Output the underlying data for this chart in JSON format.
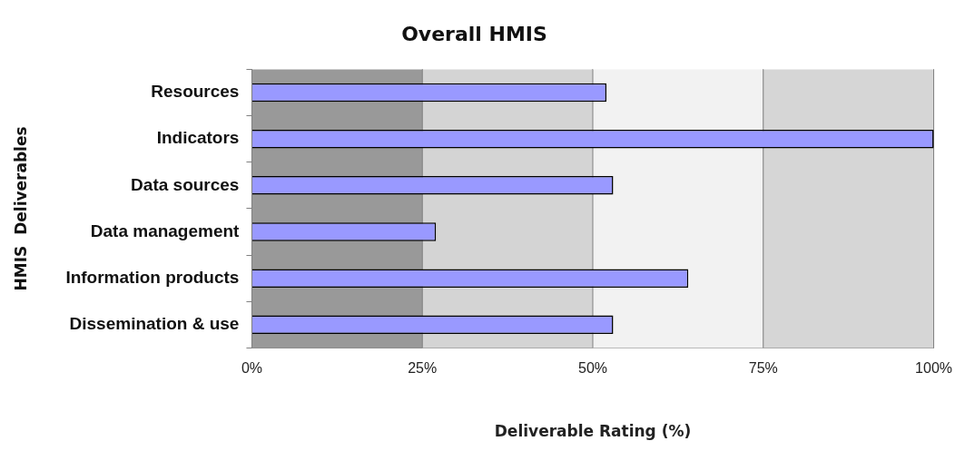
{
  "chart_data": {
    "type": "bar",
    "orientation": "horizontal",
    "title": "Overall HMIS",
    "xlabel": "Deliverable Rating (%)",
    "ylabel": "HMIS  Deliverables",
    "categories": [
      "Resources",
      "Indicators",
      "Data sources",
      "Data management",
      "Information products",
      "Dissemination & use"
    ],
    "values": [
      52,
      100,
      53,
      27,
      64,
      53
    ],
    "color": "#9999ff",
    "xlim": [
      0,
      100
    ],
    "xticks": [
      {
        "value": 0,
        "label": "0%"
      },
      {
        "value": 25,
        "label": "25%"
      },
      {
        "value": 50,
        "label": "50%"
      },
      {
        "value": 75,
        "label": "75%"
      },
      {
        "value": 100,
        "label": "100%"
      }
    ],
    "bands": [
      {
        "axis": "x",
        "from": 0,
        "to": 25,
        "color": "#999999"
      },
      {
        "axis": "x",
        "from": 25,
        "to": 50,
        "color": "#d4d4d4"
      },
      {
        "axis": "x",
        "from": 50,
        "to": 75,
        "color": "#f2f2f2"
      },
      {
        "axis": "x",
        "from": 75,
        "to": 100,
        "color": "#d6d6d6"
      }
    ],
    "grid": "x",
    "legend": false
  }
}
